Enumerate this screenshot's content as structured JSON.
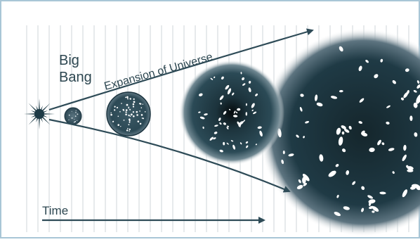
{
  "diagram": {
    "labels": {
      "big_bang_line1": "Big",
      "big_bang_line2": "Bang",
      "expansion": "Expansion of Universe",
      "time": "Time"
    },
    "stages": [
      {
        "name": "big-bang-flash"
      },
      {
        "name": "early-universe"
      },
      {
        "name": "young-universe"
      },
      {
        "name": "galaxy-formation-universe"
      },
      {
        "name": "present-universe"
      }
    ],
    "colors": {
      "frame": "#a9c6d6",
      "timeline": "#cfd6d9",
      "arrow": "#2e4b57",
      "sphere_dark": "#0f2026",
      "sphere_mid": "#24414c",
      "sphere_edge": "#e8eef0",
      "galaxy": "#ffffff"
    }
  }
}
